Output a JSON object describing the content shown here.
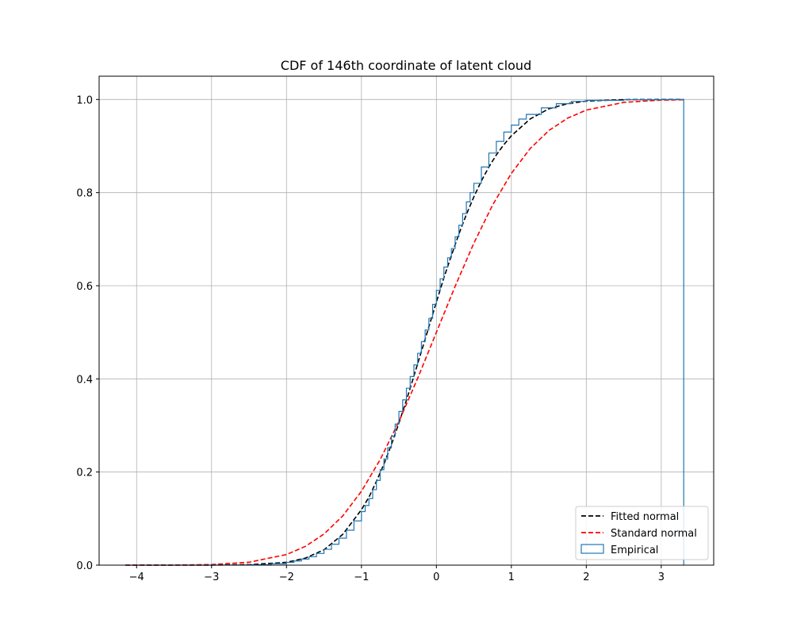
{
  "chart_data": {
    "type": "line",
    "title": "CDF of 146th coordinate of latent cloud",
    "xlabel": "",
    "ylabel": "",
    "xlim": [
      -4.5,
      3.7
    ],
    "ylim": [
      0.0,
      1.05
    ],
    "xticks": [
      -4,
      -3,
      -2,
      -1,
      0,
      1,
      2,
      3
    ],
    "yticks": [
      0.0,
      0.2,
      0.4,
      0.6,
      0.8,
      1.0
    ],
    "xtick_labels": [
      "−4",
      "−3",
      "−2",
      "−1",
      "0",
      "1",
      "2",
      "3"
    ],
    "ytick_labels": [
      "0.0",
      "0.2",
      "0.4",
      "0.6",
      "0.8",
      "1.0"
    ],
    "grid": true,
    "legend_placement": "lower-right",
    "series": [
      {
        "name": "Fitted normal",
        "style": "dashed",
        "color": "#000000",
        "x_range": [
          -4.15,
          3.3
        ],
        "x": [
          -4.15,
          -3.0,
          -2.5,
          -2.0,
          -1.75,
          -1.5,
          -1.25,
          -1.0,
          -0.9,
          -0.8,
          -0.7,
          -0.6,
          -0.5,
          -0.4,
          -0.3,
          -0.2,
          -0.1,
          0.0,
          0.1,
          0.2,
          0.3,
          0.4,
          0.5,
          0.6,
          0.7,
          0.8,
          0.9,
          1.0,
          1.25,
          1.5,
          1.75,
          2.0,
          2.5,
          3.0,
          3.3
        ],
        "y": [
          0.0,
          0.0001,
          0.001,
          0.006,
          0.015,
          0.033,
          0.066,
          0.119,
          0.146,
          0.18,
          0.217,
          0.259,
          0.305,
          0.354,
          0.406,
          0.459,
          0.512,
          0.565,
          0.617,
          0.665,
          0.711,
          0.753,
          0.791,
          0.825,
          0.855,
          0.881,
          0.903,
          0.922,
          0.958,
          0.98,
          0.991,
          0.9966,
          0.9997,
          0.99999,
          1.0
        ]
      },
      {
        "name": "Standard normal",
        "style": "dashed",
        "color": "#ff0000",
        "x_range": [
          -4.15,
          3.3
        ],
        "x": [
          -4.15,
          -3.5,
          -3.0,
          -2.5,
          -2.0,
          -1.75,
          -1.5,
          -1.25,
          -1.0,
          -0.75,
          -0.5,
          -0.25,
          0.0,
          0.25,
          0.5,
          0.75,
          1.0,
          1.25,
          1.5,
          1.75,
          2.0,
          2.5,
          3.0,
          3.3
        ],
        "y": [
          2e-05,
          0.0002,
          0.0013,
          0.0062,
          0.0228,
          0.0401,
          0.0668,
          0.1056,
          0.1587,
          0.2266,
          0.3085,
          0.4013,
          0.5,
          0.5987,
          0.6915,
          0.7734,
          0.8413,
          0.8944,
          0.9332,
          0.9599,
          0.9772,
          0.9938,
          0.9987,
          0.9995
        ]
      },
      {
        "name": "Empirical",
        "style": "step",
        "color": "#1f77b4",
        "x_end": 3.3,
        "x": [
          -4.15,
          -3.0,
          -2.5,
          -2.2,
          -2.0,
          -1.9,
          -1.8,
          -1.7,
          -1.6,
          -1.5,
          -1.4,
          -1.3,
          -1.2,
          -1.1,
          -1.0,
          -0.95,
          -0.9,
          -0.85,
          -0.8,
          -0.75,
          -0.7,
          -0.65,
          -0.6,
          -0.55,
          -0.5,
          -0.45,
          -0.4,
          -0.35,
          -0.3,
          -0.25,
          -0.2,
          -0.15,
          -0.1,
          -0.05,
          0.0,
          0.05,
          0.1,
          0.15,
          0.2,
          0.25,
          0.3,
          0.35,
          0.4,
          0.45,
          0.5,
          0.6,
          0.7,
          0.8,
          0.9,
          1.0,
          1.1,
          1.2,
          1.4,
          1.6,
          1.8,
          2.0,
          2.5,
          3.0
        ],
        "y": [
          0.0,
          0.0002,
          0.001,
          0.003,
          0.006,
          0.009,
          0.013,
          0.018,
          0.025,
          0.034,
          0.045,
          0.058,
          0.075,
          0.095,
          0.115,
          0.128,
          0.143,
          0.162,
          0.182,
          0.205,
          0.228,
          0.252,
          0.277,
          0.303,
          0.33,
          0.355,
          0.38,
          0.405,
          0.43,
          0.455,
          0.48,
          0.505,
          0.53,
          0.56,
          0.59,
          0.615,
          0.64,
          0.66,
          0.68,
          0.705,
          0.73,
          0.755,
          0.78,
          0.8,
          0.82,
          0.855,
          0.885,
          0.91,
          0.93,
          0.945,
          0.958,
          0.968,
          0.982,
          0.991,
          0.996,
          0.998,
          0.9995,
          1.0
        ]
      }
    ]
  }
}
